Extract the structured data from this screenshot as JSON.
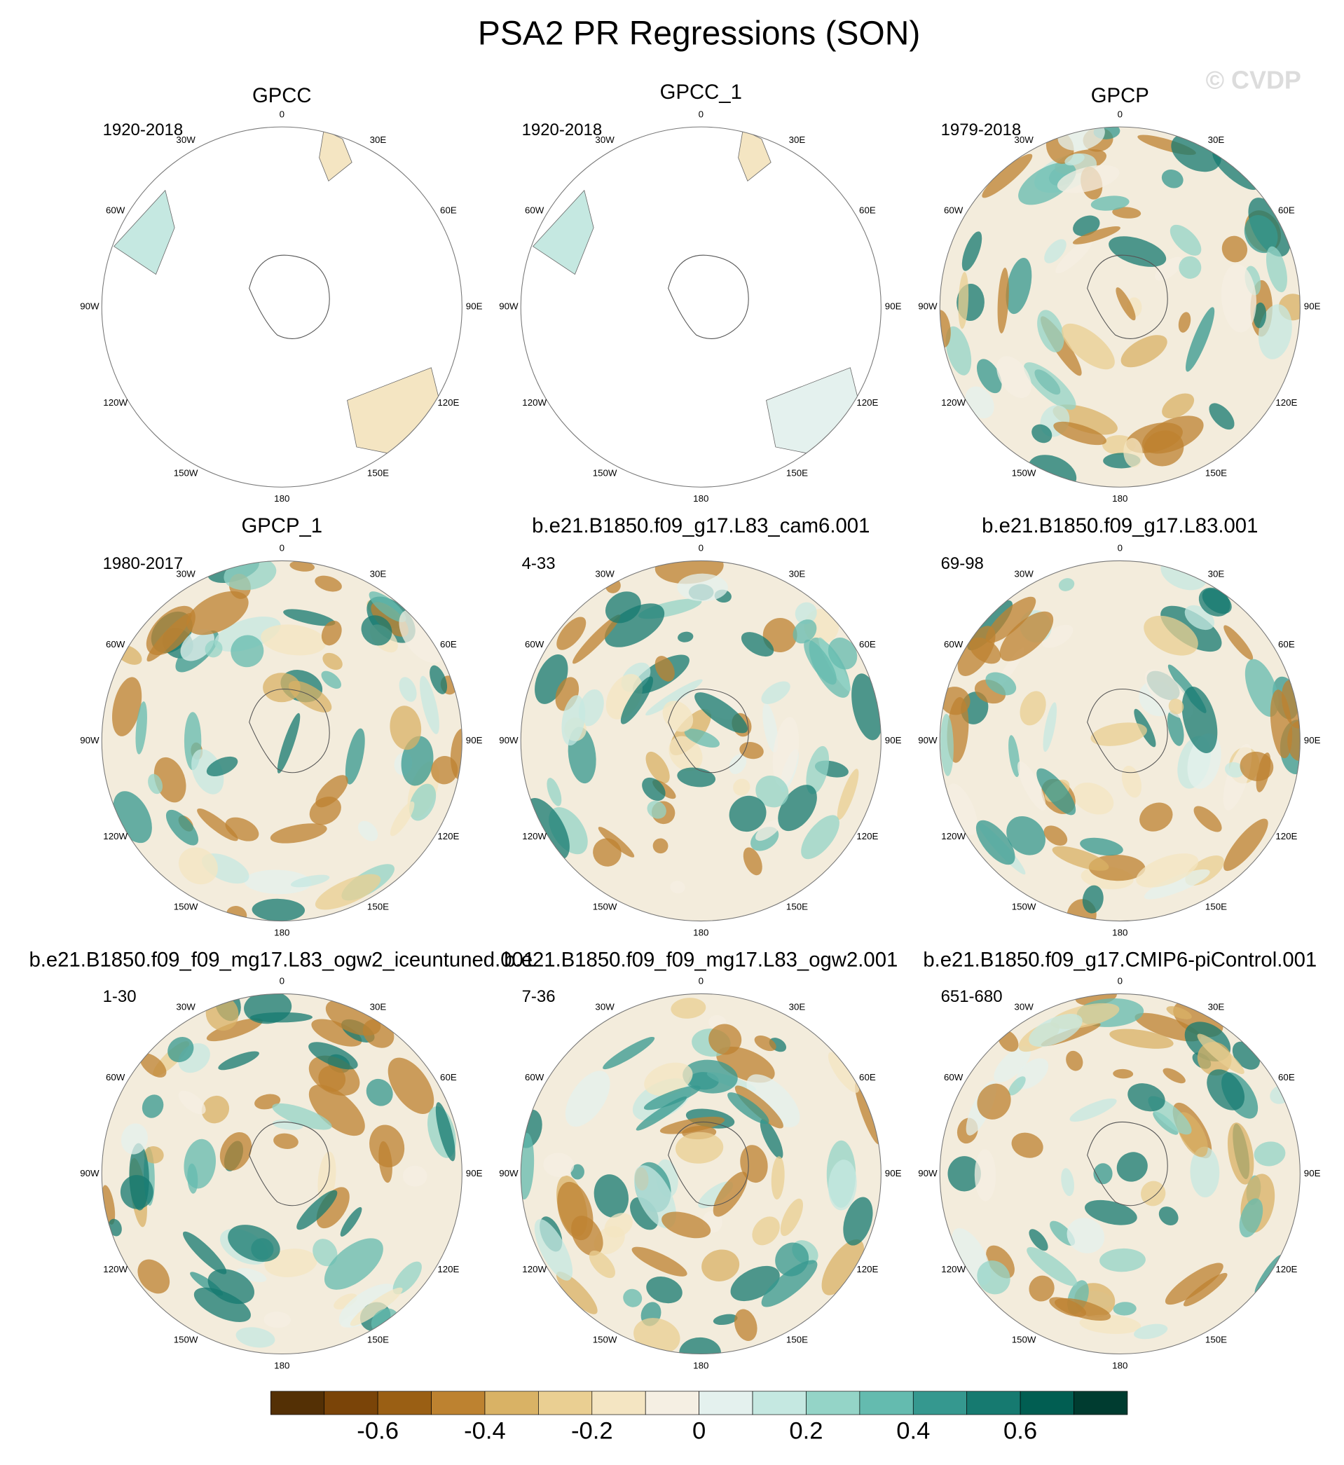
{
  "title": "PSA2 PR Regressions (SON)",
  "watermark": "© CVDP",
  "lon_labels": [
    "0",
    "30E",
    "60E",
    "90E",
    "120E",
    "150E",
    "180",
    "150W",
    "120W",
    "90W",
    "60W",
    "30W"
  ],
  "panels": [
    {
      "title": "GPCC",
      "period": "1920-2018"
    },
    {
      "title": "GPCC_1",
      "period": "1920-2018"
    },
    {
      "title": "GPCP",
      "period": "1979-2018"
    },
    {
      "title": "GPCP_1",
      "period": "1980-2017"
    },
    {
      "title": "b.e21.B1850.f09_g17.L83_cam6.001",
      "period": "4-33"
    },
    {
      "title": "b.e21.B1850.f09_g17.L83.001",
      "period": "69-98"
    },
    {
      "title": "b.e21.B1850.f09_f09_mg17.L83_ogw2_iceuntuned.001",
      "period": "1-30"
    },
    {
      "title": "b.e21.B1850.f09_f09_mg17.L83_ogw2.001",
      "period": "7-36"
    },
    {
      "title": "b.e21.B1850.f09_g17.CMIP6-piControl.001",
      "period": "651-680"
    }
  ],
  "colorbar": {
    "levels": [
      -0.8,
      -0.7,
      -0.6,
      -0.5,
      -0.4,
      -0.3,
      -0.2,
      -0.1,
      0,
      0.1,
      0.2,
      0.3,
      0.4,
      0.5,
      0.6,
      0.7,
      0.8
    ],
    "colors": [
      "#543005",
      "#7a4408",
      "#9a5f14",
      "#bd8230",
      "#d9b265",
      "#eacf92",
      "#f4e5c2",
      "#f5efe3",
      "#e4f1ee",
      "#c5e8e1",
      "#94d4c7",
      "#64bbaf",
      "#35988f",
      "#167a70",
      "#015e52",
      "#003c30"
    ],
    "ticks": [
      -0.6,
      -0.4,
      -0.2,
      0,
      0.2,
      0.4,
      0.6
    ]
  }
}
